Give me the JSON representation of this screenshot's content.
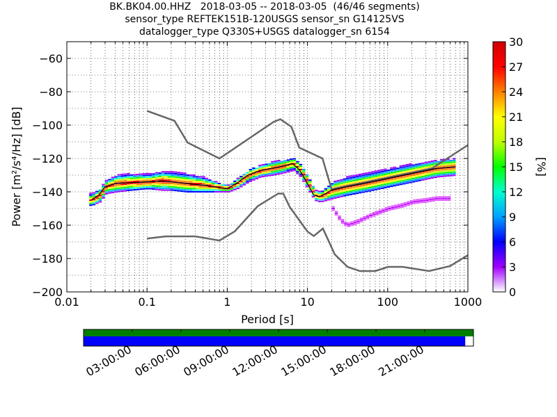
{
  "title_lines": [
    "BK.BK04.00.HHZ   2018-03-05 -- 2018-03-05  (46/46 segments)",
    "sensor_type REFTEK151B-120USGS sensor_sn G14125VS",
    "datalogger_type Q330S+USGS datalogger_sn 6154"
  ],
  "chart_data": {
    "type": "heatmap",
    "x_scale": "log",
    "xlabel": "Period [s]",
    "ylabel": "Power [m²/s⁴/Hz] [dB]",
    "xlim": [
      0.01,
      1000
    ],
    "ylim": [
      -200,
      -50
    ],
    "x_ticks": [
      0.01,
      0.1,
      1,
      10,
      100,
      1000
    ],
    "x_tick_labels": [
      "0.01",
      "0.1",
      "1",
      "10",
      "100",
      "1000"
    ],
    "y_ticks": [
      -200,
      -180,
      -160,
      -140,
      -120,
      -100,
      -80,
      -60
    ],
    "y_tick_labels": [
      "−200",
      "−180",
      "−160",
      "−140",
      "−120",
      "−100",
      "−80",
      "−60"
    ],
    "grid": true,
    "colorbar": {
      "label": "[%]",
      "range": [
        0,
        30
      ],
      "ticks": [
        0,
        3,
        6,
        9,
        12,
        15,
        18,
        21,
        24,
        27,
        30
      ],
      "colormap": [
        "#ffffff",
        "#a000ff",
        "#0000ff",
        "#00a0ff",
        "#00ffd0",
        "#00ff00",
        "#c0ff00",
        "#ffff00",
        "#ff8000",
        "#ff0000",
        "#d00000"
      ]
    },
    "noise_models": [
      {
        "name": "NHNM",
        "x": [
          0.1,
          0.22,
          0.32,
          0.8,
          3.8,
          4.6,
          6.3,
          7.9,
          15.4,
          20,
          354.8,
          1000
        ],
        "y": [
          -91.5,
          -97.4,
          -110.5,
          -120,
          -98,
          -96.5,
          -101,
          -113.5,
          -120,
          -138.5,
          -126,
          -112
        ]
      },
      {
        "name": "NLNM",
        "x": [
          0.1,
          0.17,
          0.4,
          0.8,
          1.24,
          2.4,
          4.3,
          5.0,
          6.0,
          10,
          12,
          15.6,
          21.9,
          31.6,
          45,
          70,
          101,
          154,
          328,
          600,
          1000
        ],
        "y": [
          -168,
          -166.7,
          -166.7,
          -169.2,
          -163.7,
          -148.6,
          -141.1,
          -141.1,
          -149,
          -163.8,
          -166.5,
          -162,
          -177.5,
          -185,
          -187.5,
          -187.5,
          -185,
          -185,
          -187.5,
          -184.5,
          -178
        ]
      }
    ],
    "mean_curve": {
      "x": [
        0.02,
        0.025,
        0.03,
        0.04,
        0.06,
        0.1,
        0.15,
        0.2,
        0.3,
        0.5,
        0.8,
        1,
        1.3,
        1.8,
        2.5,
        3.5,
        4.5,
        5.5,
        6.5,
        8,
        10,
        12,
        14,
        17,
        20,
        30,
        50,
        100,
        200,
        400,
        700
      ],
      "y": [
        -145,
        -142,
        -137,
        -135,
        -134.5,
        -134,
        -133.5,
        -134,
        -135,
        -136,
        -137.5,
        -138,
        -135,
        -130,
        -127.5,
        -126,
        -125,
        -124,
        -123,
        -127,
        -135,
        -142,
        -143,
        -141,
        -139,
        -137,
        -135,
        -132,
        -129,
        -126,
        -125
      ]
    },
    "percentile_band": {
      "x": [
        0.02,
        0.025,
        0.03,
        0.04,
        0.06,
        0.1,
        0.15,
        0.2,
        0.3,
        0.5,
        0.8,
        1,
        1.3,
        1.8,
        2.5,
        3.5,
        4.5,
        5.5,
        6.5,
        8,
        10,
        12,
        14,
        17,
        20,
        30,
        50,
        100,
        200,
        400,
        700
      ],
      "lo": [
        -148,
        -146,
        -141,
        -140,
        -139,
        -138,
        -139,
        -139,
        -140,
        -140,
        -140,
        -140,
        -138,
        -134,
        -131,
        -130,
        -129,
        -128,
        -127,
        -131,
        -139,
        -145,
        -146,
        -145,
        -144,
        -142,
        -140,
        -137,
        -134,
        -131,
        -130
      ],
      "hi": [
        -141,
        -138,
        -133,
        -130,
        -129,
        -129,
        -128,
        -128,
        -129,
        -131,
        -135,
        -136,
        -132,
        -127,
        -124,
        -122,
        -121,
        -121,
        -120,
        -124,
        -131,
        -139,
        -140,
        -137,
        -134,
        -131,
        -129,
        -126,
        -123,
        -121,
        -120
      ]
    },
    "low_branch": {
      "x": [
        20,
        25,
        30,
        40,
        60,
        100,
        150,
        200,
        300,
        400,
        600
      ],
      "y": [
        -150,
        -157,
        -160,
        -158,
        -154,
        -150,
        -148,
        -146,
        -145,
        -144,
        -144
      ]
    }
  },
  "timeline": {
    "tick_labels": [
      "03:00:00",
      "06:00:00",
      "09:00:00",
      "12:00:00",
      "15:00:00",
      "18:00:00",
      "21:00:00"
    ],
    "data_coverage_color": "#0000ff",
    "gap_color": "#008000",
    "coverage_fraction": 0.979
  }
}
